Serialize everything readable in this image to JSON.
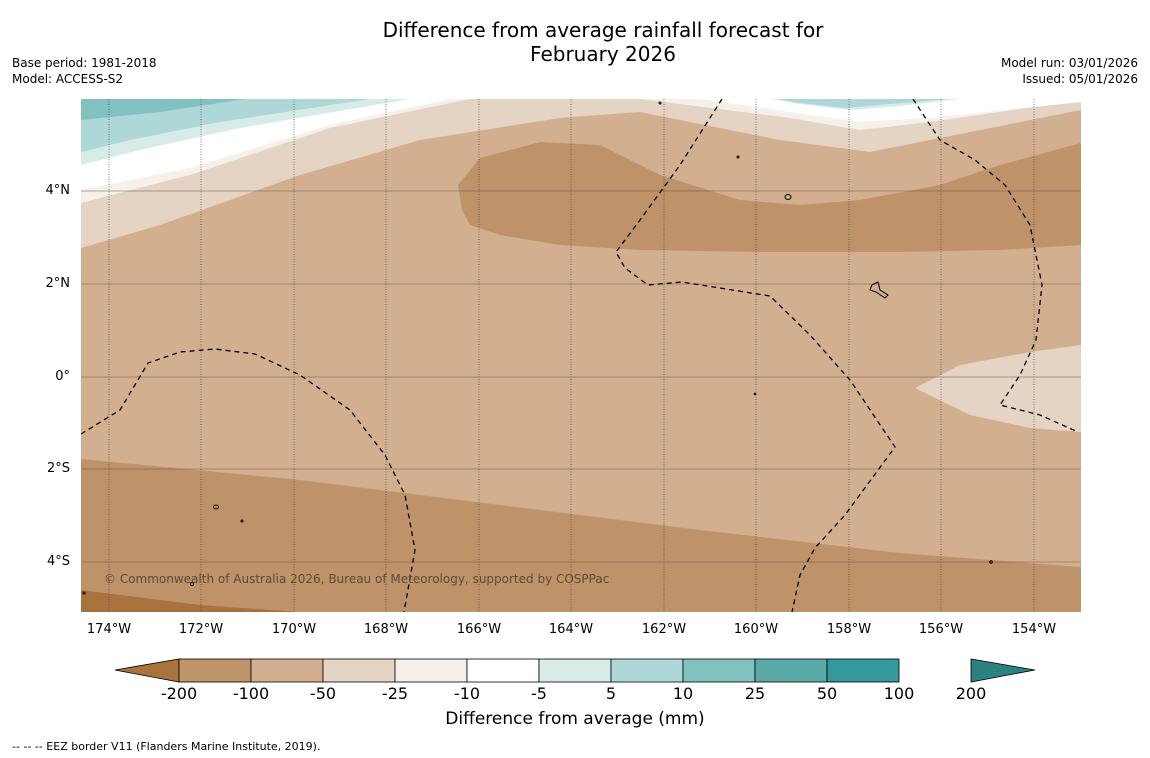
{
  "title": {
    "line1": "Difference from average rainfall forecast for",
    "line2": "February 2026"
  },
  "meta": {
    "base_period": "Base period: 1981-2018",
    "model": "Model: ACCESS-S2",
    "model_run": "Model run: 03/01/2026",
    "issued": "Issued: 05/01/2026"
  },
  "map": {
    "latitude_labels": [
      "4°N",
      "2°N",
      "0°",
      "2°S",
      "4°S"
    ],
    "longitude_labels": [
      "174°W",
      "172°W",
      "170°W",
      "168°W",
      "166°W",
      "164°W",
      "162°W",
      "160°W",
      "158°W",
      "156°W",
      "154°W"
    ],
    "copyright": "© Commonwealth of Australia 2026, Bureau of Meteorology, supported by COSPPac"
  },
  "colorbar": {
    "title": "Difference from average (mm)",
    "tick_labels": [
      "-200",
      "-100",
      "-50",
      "-25",
      "-10",
      "-5",
      "5",
      "10",
      "25",
      "50",
      "100",
      "200"
    ],
    "colors": [
      "#a9733d",
      "#bf9369",
      "#d2b08f",
      "#e5d3c3",
      "#f5f0ea",
      "#ffffff",
      "#d7ebe9",
      "#add8d7",
      "#81c2c0",
      "#5aaaa9",
      "#33999a",
      "#2b8080"
    ]
  },
  "legend_note": "--  --  -- EEZ border V11 (Flanders Marine Institute, 2019)."
}
